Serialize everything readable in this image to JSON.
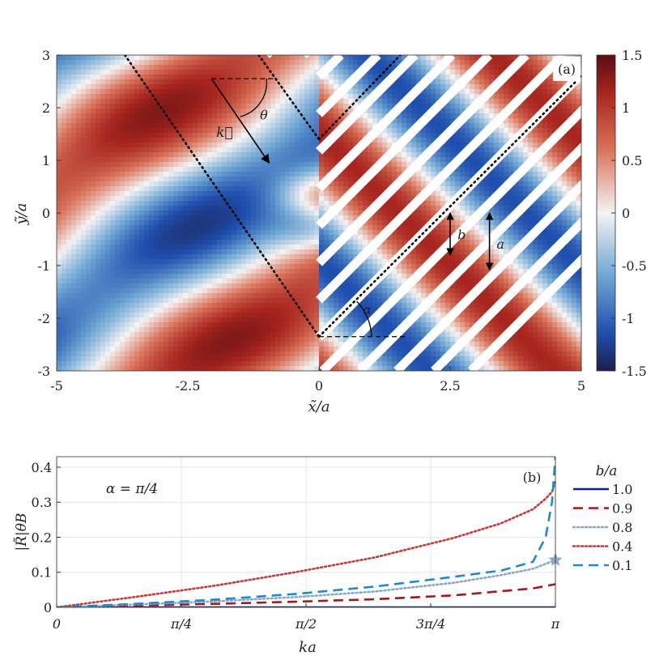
{
  "chart_data": [
    {
      "type": "heatmap",
      "panel_label": "(a)",
      "xlabel": "x̃/a",
      "ylabel": "ỹ/a",
      "xlim": [
        -5,
        5
      ],
      "ylim": [
        -3,
        3
      ],
      "x_ticks": [
        -5,
        -2.5,
        0,
        2.5,
        5
      ],
      "x_tick_labels": [
        "-5",
        "-2.5",
        "0",
        "2.5",
        "5"
      ],
      "y_ticks": [
        3,
        2,
        1,
        0,
        -1,
        -2,
        -3
      ],
      "y_tick_labels": [
        "3",
        "2",
        "1",
        "0",
        "-1",
        "-2",
        "-3"
      ],
      "colorbar": {
        "range": [
          -1.5,
          1.5
        ],
        "ticks": [
          1.5,
          1,
          0.5,
          0,
          -0.5,
          -1,
          -1.5
        ],
        "tick_labels": [
          "1.5",
          "1",
          "0.5",
          "0",
          "-0.5",
          "-1",
          "-1.5"
        ],
        "colormap": {
          "low": "#1b1f4d",
          "mid": "#f4f4f4",
          "high": "#5a0d12"
        }
      },
      "annotations": {
        "wave_vector": "k⃗",
        "incidence_angle": "θ",
        "wedge_angle": "α",
        "slit_width": "b",
        "period": "a"
      }
    },
    {
      "type": "line",
      "panel_label": "(b)",
      "xlabel": "ka",
      "ylabel": "|R̃|θB",
      "xlim": [
        0,
        3.1416
      ],
      "ylim": [
        0,
        0.43
      ],
      "x_ticks": [
        0,
        0.7854,
        1.5708,
        2.3562,
        3.1416
      ],
      "x_tick_labels": [
        "0",
        "π/4",
        "π/2",
        "3π/4",
        "π"
      ],
      "y_ticks": [
        0,
        0.1,
        0.2,
        0.3,
        0.4
      ],
      "y_tick_labels": [
        "0",
        "0.1",
        "0.2",
        "0.3",
        "0.4"
      ],
      "grid": true,
      "inset_text": "α = π/4",
      "legend": {
        "title": "b/a",
        "placement": "outside-right"
      },
      "series": [
        {
          "name": "1.0",
          "style": "solid",
          "color": "#0b1f9a",
          "x": [
            0,
            0.5,
            1.0,
            1.5,
            2.0,
            2.5,
            3.0,
            3.1416
          ],
          "y": [
            0,
            0,
            0,
            0,
            0,
            0,
            0,
            0
          ]
        },
        {
          "name": "0.9",
          "style": "dashed",
          "color": "#9e1b1b",
          "x": [
            0,
            0.5,
            1.0,
            1.5,
            2.0,
            2.5,
            3.0,
            3.1416
          ],
          "y": [
            0,
            0.005,
            0.01,
            0.016,
            0.023,
            0.034,
            0.054,
            0.066
          ]
        },
        {
          "name": "0.8",
          "style": "dotted",
          "color": "#8aa9c2",
          "x": [
            0,
            0.5,
            1.0,
            1.5,
            2.0,
            2.5,
            2.8,
            3.0,
            3.1416
          ],
          "y": [
            0,
            0.008,
            0.017,
            0.029,
            0.045,
            0.07,
            0.092,
            0.11,
            0.135
          ]
        },
        {
          "name": "0.4",
          "style": "dotted",
          "color": "#c23b3b",
          "x": [
            0,
            0.5,
            1.0,
            1.5,
            2.0,
            2.5,
            2.8,
            3.0,
            3.08,
            3.12,
            3.1416
          ],
          "y": [
            0,
            0.03,
            0.062,
            0.1,
            0.142,
            0.198,
            0.24,
            0.28,
            0.31,
            0.33,
            0.36
          ]
        },
        {
          "name": "0.1",
          "style": "dashed",
          "color": "#1f8ad0",
          "x": [
            0,
            0.5,
            1.0,
            1.5,
            2.0,
            2.5,
            2.8,
            3.0,
            3.08,
            3.12,
            3.13,
            3.1416
          ],
          "y": [
            0,
            0.01,
            0.022,
            0.038,
            0.059,
            0.087,
            0.105,
            0.13,
            0.2,
            0.3,
            0.36,
            0.43
          ]
        }
      ],
      "marker": {
        "shape": "star",
        "color": "#8aa9c2",
        "x": 3.1416,
        "y": 0.135
      }
    }
  ]
}
